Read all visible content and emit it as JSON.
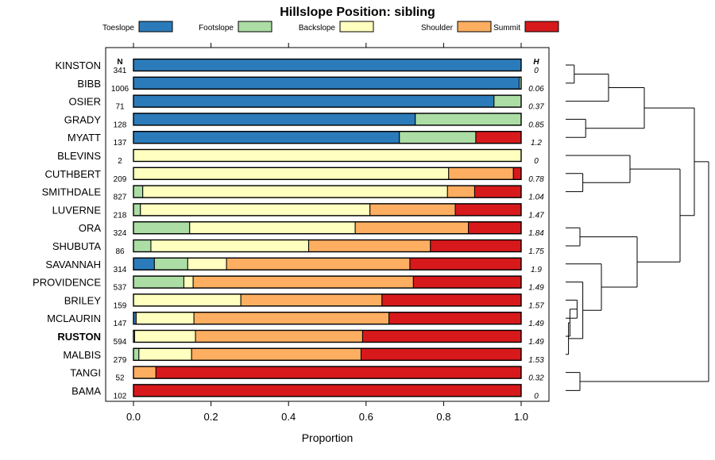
{
  "chart_data": {
    "type": "bar",
    "subtype": "stacked-horizontal-proportion",
    "title": "Hillslope Position: sibling",
    "xlabel": "Proportion",
    "xlim": [
      0,
      1
    ],
    "xticks": [
      "0.0",
      "0.2",
      "0.4",
      "0.6",
      "0.8",
      "1.0"
    ],
    "n_header": "N",
    "h_header": "H",
    "legend_position": "top",
    "classes": [
      {
        "name": "Toeslope",
        "color": "#2b7bba"
      },
      {
        "name": "Footslope",
        "color": "#abdda4"
      },
      {
        "name": "Backslope",
        "color": "#ffffbf"
      },
      {
        "name": "Shoulder",
        "color": "#fdae61"
      },
      {
        "name": "Summit",
        "color": "#d7191c"
      }
    ],
    "highlight": "RUSTON",
    "rows": [
      {
        "name": "KINSTON",
        "n": "341",
        "h": "0",
        "values": [
          1.0,
          0,
          0,
          0,
          0
        ]
      },
      {
        "name": "BIBB",
        "n": "1006",
        "h": "0.06",
        "values": [
          0.995,
          0.005,
          0,
          0,
          0
        ]
      },
      {
        "name": "OSIER",
        "n": "71",
        "h": "0.37",
        "values": [
          0.93,
          0.07,
          0,
          0,
          0
        ]
      },
      {
        "name": "GRADY",
        "n": "128",
        "h": "0.85",
        "values": [
          0.727,
          0.273,
          0,
          0,
          0
        ]
      },
      {
        "name": "MYATT",
        "n": "137",
        "h": "1.2",
        "values": [
          0.686,
          0.197,
          0,
          0,
          0.117
        ]
      },
      {
        "name": "BLEVINS",
        "n": "2",
        "h": "0",
        "values": [
          0,
          0,
          1.0,
          0,
          0
        ]
      },
      {
        "name": "CUTHBERT",
        "n": "209",
        "h": "0.78",
        "values": [
          0,
          0,
          0.813,
          0.167,
          0.02
        ]
      },
      {
        "name": "SMITHDALE",
        "n": "827",
        "h": "1.04",
        "values": [
          0,
          0.024,
          0.786,
          0.07,
          0.12
        ]
      },
      {
        "name": "LUVERNE",
        "n": "218",
        "h": "1.47",
        "values": [
          0,
          0.018,
          0.592,
          0.22,
          0.17
        ]
      },
      {
        "name": "ORA",
        "n": "324",
        "h": "1.84",
        "values": [
          0,
          0.145,
          0.427,
          0.292,
          0.136
        ]
      },
      {
        "name": "SHUBUTA",
        "n": "86",
        "h": "1.75",
        "values": [
          0,
          0.045,
          0.407,
          0.314,
          0.234
        ]
      },
      {
        "name": "SAVANNAH",
        "n": "314",
        "h": "1.9",
        "values": [
          0.054,
          0.086,
          0.1,
          0.473,
          0.287
        ]
      },
      {
        "name": "PROVIDENCE",
        "n": "537",
        "h": "1.49",
        "values": [
          0,
          0.13,
          0.024,
          0.568,
          0.278
        ]
      },
      {
        "name": "BRILEY",
        "n": "159",
        "h": "1.57",
        "values": [
          0,
          0,
          0.277,
          0.364,
          0.359
        ]
      },
      {
        "name": "MCLAURIN",
        "n": "147",
        "h": "1.49",
        "values": [
          0.007,
          0,
          0.149,
          0.503,
          0.341
        ]
      },
      {
        "name": "RUSTON",
        "n": "594",
        "h": "1.49",
        "values": [
          0,
          0.003,
          0.157,
          0.431,
          0.409
        ]
      },
      {
        "name": "MALBIS",
        "n": "279",
        "h": "1.53",
        "values": [
          0,
          0.014,
          0.136,
          0.437,
          0.413
        ]
      },
      {
        "name": "TANGI",
        "n": "52",
        "h": "0.32",
        "values": [
          0,
          0,
          0,
          0.058,
          0.942
        ]
      },
      {
        "name": "BAMA",
        "n": "102",
        "h": "0",
        "values": [
          0,
          0,
          0,
          0,
          1.0
        ]
      }
    ],
    "dendrogram_merges": [
      [
        -1,
        -2,
        0.06
      ],
      [
        -4,
        -5,
        0.14
      ],
      [
        -3,
        1,
        0.3
      ],
      [
        3,
        2,
        0.55
      ],
      [
        -7,
        -8,
        0.12
      ],
      [
        -6,
        5,
        0.45
      ],
      [
        -10,
        -11,
        0.1
      ],
      [
        -14,
        -15,
        0.08
      ],
      [
        8,
        -16,
        0.03
      ],
      [
        9,
        -17,
        0.02
      ],
      [
        -13,
        10,
        0.12
      ],
      [
        -12,
        11,
        0.25
      ],
      [
        7,
        12,
        0.5
      ],
      [
        6,
        13,
        0.8
      ],
      [
        -18,
        -19,
        0.1
      ],
      [
        4,
        14,
        0.9
      ],
      [
        16,
        15,
        1.0
      ]
    ]
  }
}
